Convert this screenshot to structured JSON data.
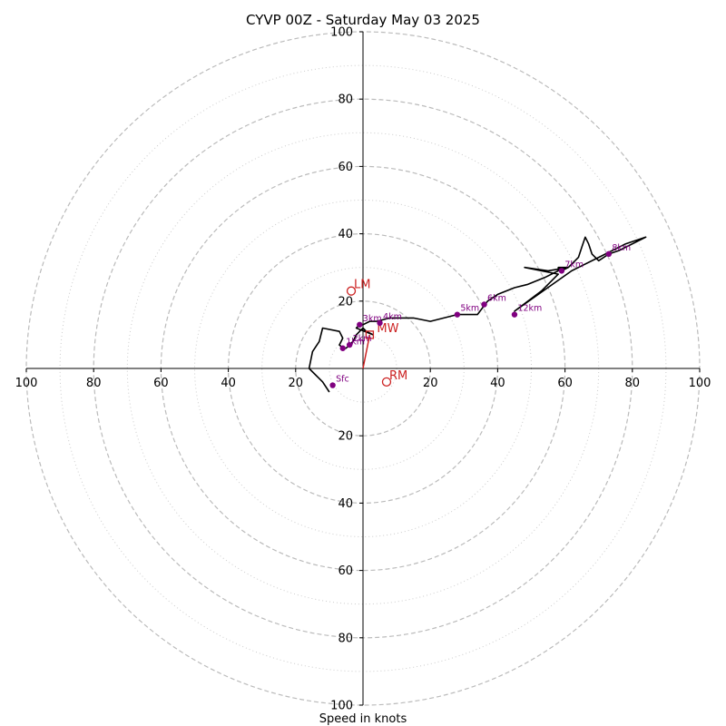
{
  "chart_data": {
    "type": "scatter",
    "title": "CYVP 00Z - Saturday May 03 2025",
    "xlabel": "Speed in knots",
    "ylabel": "",
    "xlim": [
      -100,
      100
    ],
    "ylim": [
      -100,
      100
    ],
    "rings_dashed": [
      20,
      40,
      60,
      80,
      100
    ],
    "rings_dotted": [
      10,
      30,
      50,
      70,
      90
    ],
    "tick_labels": {
      "x_left": [
        "100",
        "80",
        "60",
        "40",
        "20"
      ],
      "x_right": [
        "20",
        "40",
        "60",
        "80",
        "100"
      ],
      "y_top": [
        "100",
        "80",
        "60",
        "40",
        "20"
      ],
      "y_bottom": [
        "20",
        "40",
        "60",
        "80",
        "100"
      ]
    },
    "hodograph": {
      "name": "",
      "color": "#000000",
      "points": [
        [
          -10,
          -7
        ],
        [
          -12,
          -4
        ],
        [
          -16,
          0
        ],
        [
          -15,
          5
        ],
        [
          -13,
          8
        ],
        [
          -12,
          12
        ],
        [
          -7,
          11
        ],
        [
          -6,
          9
        ],
        [
          -7,
          7
        ],
        [
          -6,
          6
        ],
        [
          -5,
          6
        ],
        [
          -4,
          7
        ],
        [
          -3,
          8
        ],
        [
          -2,
          10
        ],
        [
          -1,
          11
        ],
        [
          0,
          12
        ],
        [
          1,
          11
        ],
        [
          3,
          10
        ],
        [
          -2,
          12
        ],
        [
          -1,
          13
        ],
        [
          0,
          13
        ],
        [
          2,
          14
        ],
        [
          4,
          14
        ],
        [
          8,
          15
        ],
        [
          15,
          15
        ],
        [
          20,
          14
        ],
        [
          24,
          15
        ],
        [
          28,
          16
        ],
        [
          34,
          16
        ],
        [
          37,
          20
        ],
        [
          40,
          22
        ],
        [
          45,
          24
        ],
        [
          49,
          25
        ],
        [
          54,
          27
        ],
        [
          58,
          29
        ],
        [
          58,
          30
        ],
        [
          61,
          30
        ],
        [
          55,
          29
        ],
        [
          48,
          30
        ],
        [
          58,
          28
        ],
        [
          53,
          23
        ],
        [
          49,
          20
        ],
        [
          45,
          17
        ],
        [
          62,
          29
        ],
        [
          70,
          33
        ],
        [
          78,
          37
        ],
        [
          84,
          39
        ],
        [
          76,
          35
        ],
        [
          73,
          34
        ],
        [
          70,
          32
        ],
        [
          68,
          34
        ],
        [
          67,
          37
        ],
        [
          66,
          39
        ],
        [
          65,
          36
        ],
        [
          64,
          33
        ],
        [
          61,
          30
        ],
        [
          59,
          29
        ]
      ]
    },
    "height_markers": [
      {
        "label": "Sfc",
        "u": -9,
        "v": -5
      },
      {
        "label": "1km",
        "u": -6,
        "v": 6
      },
      {
        "label": "2km",
        "u": -4,
        "v": 7
      },
      {
        "label": "3km",
        "u": -1,
        "v": 13
      },
      {
        "label": "4km",
        "u": 5,
        "v": 13.5
      },
      {
        "label": "5km",
        "u": 28,
        "v": 16
      },
      {
        "label": "6km",
        "u": 36,
        "v": 19
      },
      {
        "label": "7km",
        "u": 59,
        "v": 29
      },
      {
        "label": "8km",
        "u": 73,
        "v": 34
      },
      {
        "label": "12km",
        "u": 45,
        "v": 16
      }
    ],
    "storm_motion": {
      "LM": {
        "label": "LM",
        "u": -3.5,
        "v": 23
      },
      "RM": {
        "label": "RM",
        "u": 7,
        "v": -4
      },
      "MW": {
        "label": "MW",
        "u": 2,
        "v": 10
      }
    },
    "colors": {
      "hodograph": "#000000",
      "height_markers": "#800080",
      "storm_motion": "#cc2222",
      "grid": "#bbbbbb"
    }
  }
}
